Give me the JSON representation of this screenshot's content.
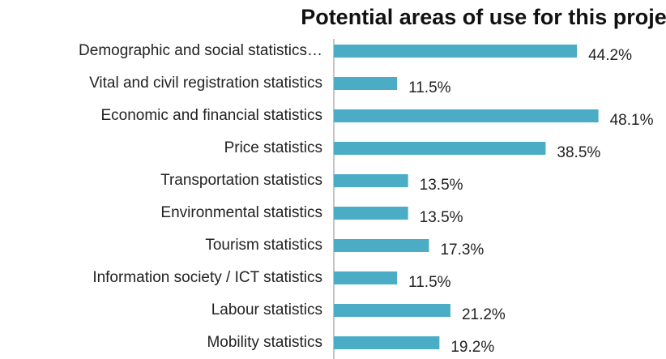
{
  "chart_data": {
    "type": "bar",
    "orientation": "horizontal",
    "title": "Potential areas of use for this project",
    "categories": [
      "Demographic and social statistics…",
      "Vital and civil registration statistics",
      "Economic and financial statistics",
      "Price statistics",
      "Transportation statistics",
      "Environmental statistics",
      "Tourism statistics",
      "Information society / ICT statistics",
      "Labour statistics",
      "Mobility statistics"
    ],
    "values": [
      44.2,
      11.5,
      48.1,
      38.5,
      13.5,
      13.5,
      17.3,
      11.5,
      21.2,
      19.2
    ],
    "value_labels": [
      "44.2%",
      "11.5%",
      "48.1%",
      "38.5%",
      "13.5%",
      "13.5%",
      "17.3%",
      "11.5%",
      "21.2%",
      "19.2%"
    ],
    "color": "#4bacc6"
  }
}
